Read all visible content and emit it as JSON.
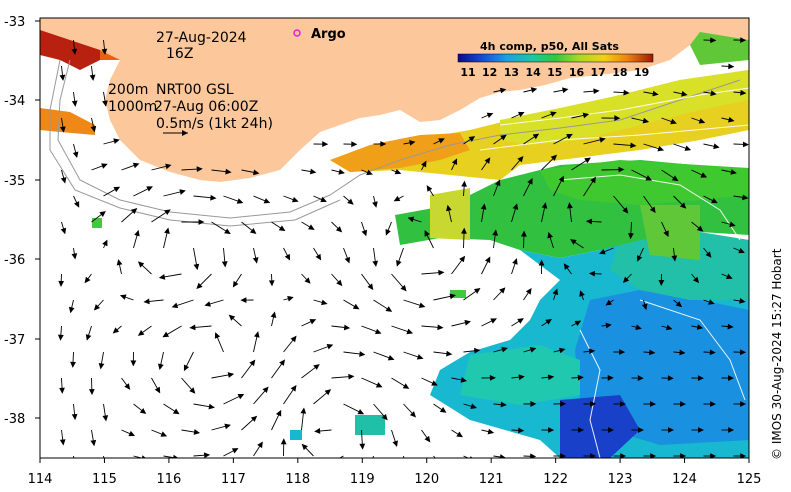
{
  "map": {
    "date": "27-Aug-2024",
    "hour": "16Z",
    "depth_lines": [
      "200m",
      "1000m"
    ],
    "product": "NRT00 GSL",
    "vector_time": "27-Aug 06:00Z",
    "scale_label": "0.5m/s (1kt 24h)",
    "argo_label": "Argo",
    "colorbar_title": "4h comp, p50, All Sats",
    "colorbar_ticks": [
      "11",
      "12",
      "13",
      "14",
      "15",
      "16",
      "17",
      "18",
      "19"
    ],
    "credit": "© IMOS 30-Aug-2024 15:27 Hobart",
    "x_ticks": [
      "114",
      "115",
      "116",
      "117",
      "118",
      "119",
      "120",
      "121",
      "122",
      "123",
      "124",
      "125"
    ],
    "y_ticks": [
      "-33",
      "-34",
      "-35",
      "-36",
      "-37",
      "-38"
    ],
    "colors": {
      "land": "#fcc89b",
      "argo": "#e020e0"
    }
  }
}
